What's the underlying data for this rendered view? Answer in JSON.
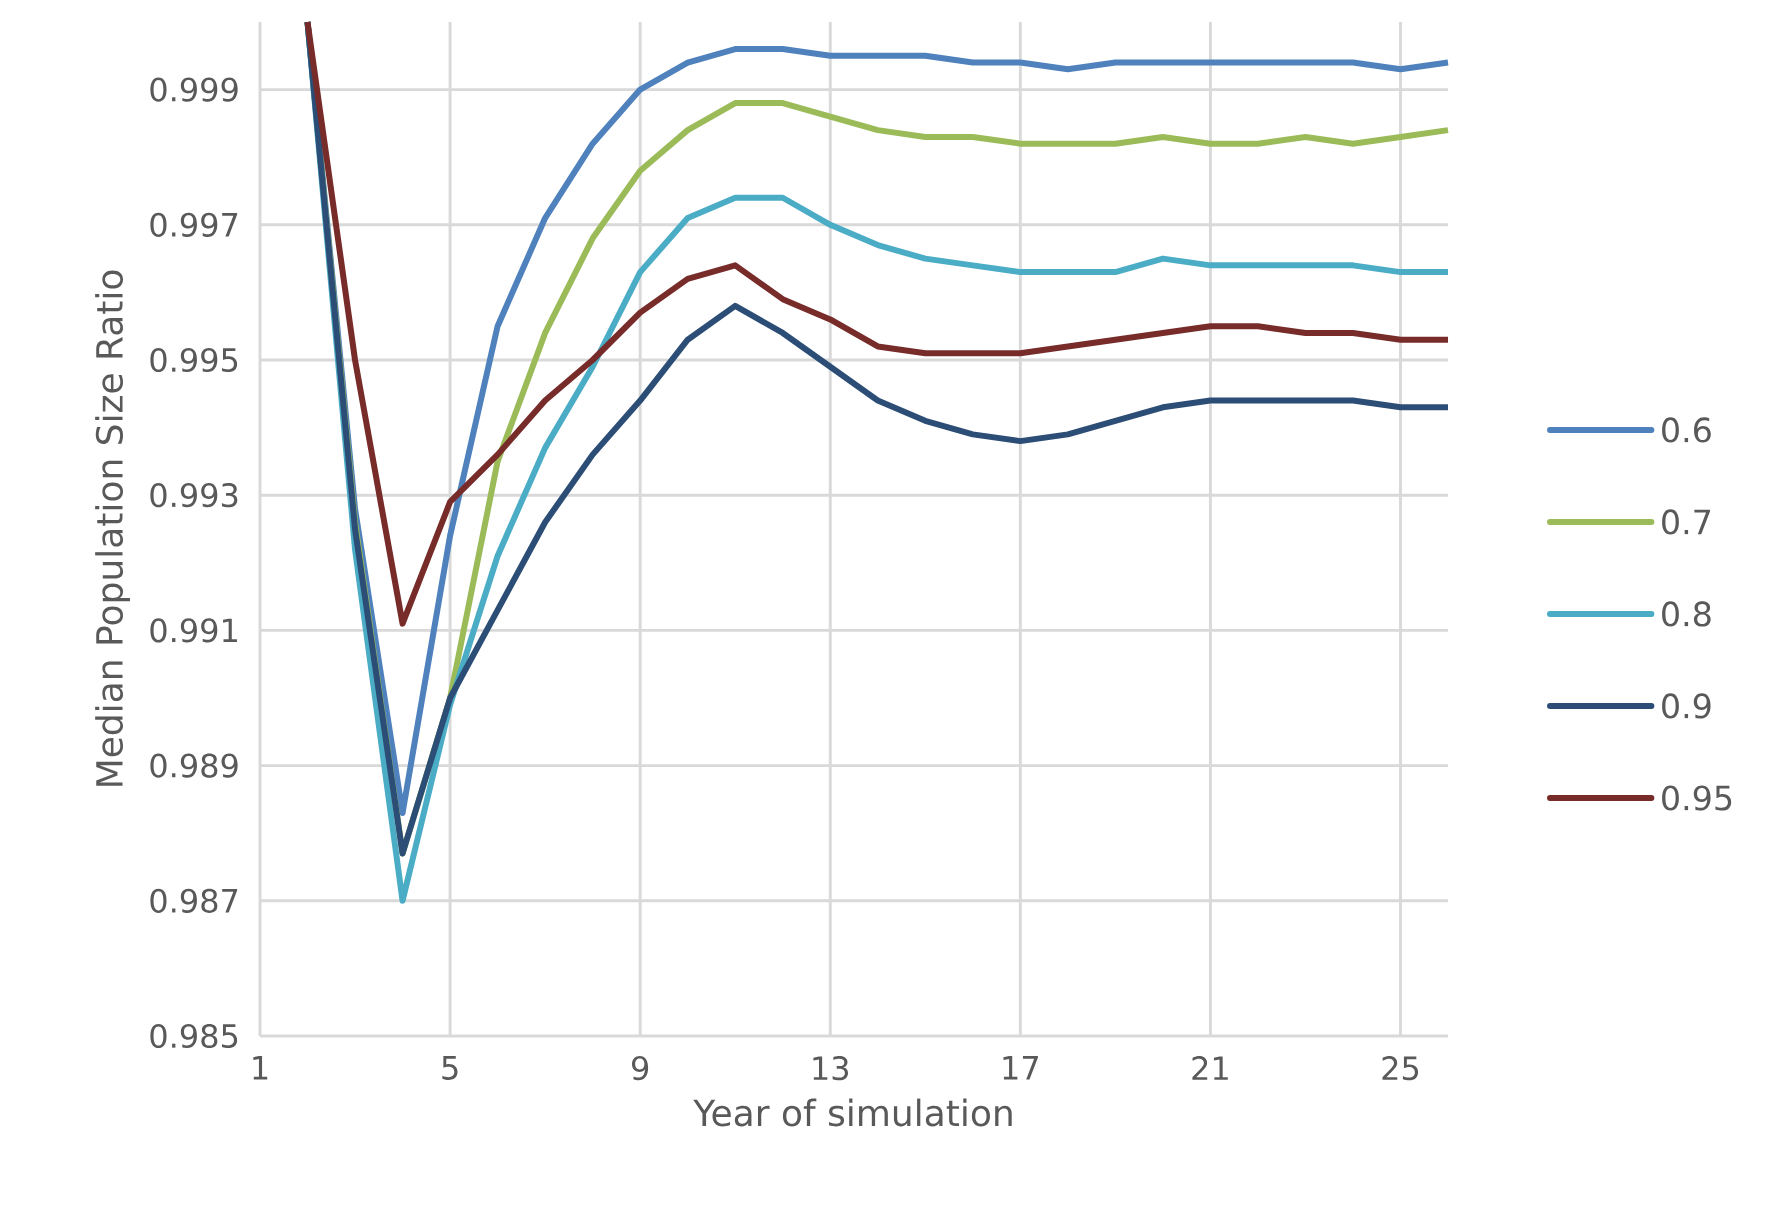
{
  "chart_data": {
    "type": "line",
    "xlabel": "Year of simulation",
    "ylabel": "Median Population Size Ratio",
    "x": [
      2,
      3,
      4,
      5,
      6,
      7,
      8,
      9,
      10,
      11,
      12,
      13,
      14,
      15,
      16,
      17,
      18,
      19,
      20,
      21,
      22,
      23,
      24,
      25,
      26
    ],
    "series": [
      {
        "name": "0.6",
        "color": "#4f81bd",
        "values": [
          1.0,
          0.9928,
          0.9883,
          0.9924,
          0.9955,
          0.9971,
          0.9982,
          0.999,
          0.9994,
          0.9996,
          0.9996,
          0.9995,
          0.9995,
          0.9995,
          0.9994,
          0.9994,
          0.9993,
          0.9994,
          0.9994,
          0.9994,
          0.9994,
          0.9994,
          0.9994,
          0.9993,
          0.9994
        ]
      },
      {
        "name": "0.7",
        "color": "#9bbb59",
        "values": [
          1.0,
          0.9926,
          0.9877,
          0.99,
          0.9935,
          0.9954,
          0.9968,
          0.9978,
          0.9984,
          0.9988,
          0.9988,
          0.9986,
          0.9984,
          0.9983,
          0.9983,
          0.9982,
          0.9982,
          0.9982,
          0.9983,
          0.9982,
          0.9982,
          0.9983,
          0.9982,
          0.9983,
          0.9984
        ]
      },
      {
        "name": "0.8",
        "color": "#4bacc6",
        "values": [
          1.0,
          0.9922,
          0.987,
          0.9899,
          0.9921,
          0.9937,
          0.9949,
          0.9963,
          0.9971,
          0.9974,
          0.9974,
          0.997,
          0.9967,
          0.9965,
          0.9964,
          0.9963,
          0.9963,
          0.9963,
          0.9965,
          0.9964,
          0.9964,
          0.9964,
          0.9964,
          0.9963,
          0.9963
        ]
      },
      {
        "name": "0.9",
        "color": "#2c4d75",
        "values": [
          1.0,
          0.9925,
          0.9877,
          0.99,
          0.9913,
          0.9926,
          0.9936,
          0.9944,
          0.9953,
          0.9958,
          0.9954,
          0.9949,
          0.9944,
          0.9941,
          0.9939,
          0.9938,
          0.9939,
          0.9941,
          0.9943,
          0.9944,
          0.9944,
          0.9944,
          0.9944,
          0.9943,
          0.9943
        ]
      },
      {
        "name": "0.95",
        "color": "#772c2a",
        "values": [
          1.0,
          0.995,
          0.9911,
          0.9929,
          0.9936,
          0.9944,
          0.995,
          0.9957,
          0.9962,
          0.9964,
          0.9959,
          0.9956,
          0.9952,
          0.9951,
          0.9951,
          0.9951,
          0.9952,
          0.9953,
          0.9954,
          0.9955,
          0.9955,
          0.9954,
          0.9954,
          0.9953,
          0.9953
        ]
      }
    ],
    "xlim": [
      1,
      26
    ],
    "xticks": [
      1,
      5,
      9,
      13,
      17,
      21,
      25
    ],
    "ylim": [
      0.985,
      1.0
    ],
    "yticks": [
      0.985,
      0.987,
      0.989,
      0.991,
      0.993,
      0.995,
      0.997,
      0.999
    ],
    "grid": true,
    "legend": "right",
    "marker": "none",
    "line_style": "solid"
  }
}
